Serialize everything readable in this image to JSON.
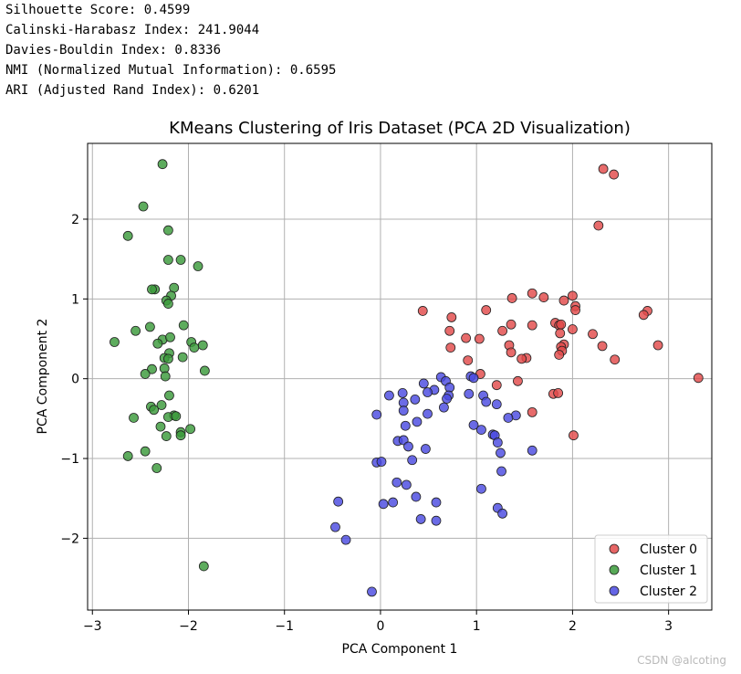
{
  "metrics": [
    "Silhouette Score: 0.4599",
    "Calinski-Harabasz Index: 241.9044",
    "Davies-Bouldin Index: 0.8336",
    "NMI (Normalized Mutual Information): 0.6595",
    "ARI (Adjusted Rand Index): 0.6201"
  ],
  "watermark": "CSDN @alcoting",
  "chart_data": {
    "type": "scatter",
    "title": "KMeans Clustering of Iris Dataset (PCA 2D Visualization)",
    "xlabel": "PCA Component 1",
    "ylabel": "PCA Component 2",
    "xlim": [
      -3.05,
      3.45
    ],
    "ylim": [
      -2.9,
      2.95
    ],
    "xticks": [
      -3,
      -2,
      -1,
      0,
      1,
      2,
      3
    ],
    "yticks": [
      -2,
      -1,
      0,
      1,
      2
    ],
    "xtick_labels": [
      "−3",
      "−2",
      "−1",
      "0",
      "1",
      "2",
      "3"
    ],
    "ytick_labels": [
      "−2",
      "−1",
      "0",
      "1",
      "2"
    ],
    "grid": true,
    "legend_position": "bottom-right",
    "series": [
      {
        "name": "Cluster 0",
        "color": "#e24a4a",
        "points": [
          [
            2.32,
            2.63
          ],
          [
            2.43,
            2.56
          ],
          [
            2.27,
            1.92
          ],
          [
            1.58,
            1.07
          ],
          [
            2.0,
            1.04
          ],
          [
            1.7,
            1.02
          ],
          [
            1.37,
            1.01
          ],
          [
            1.91,
            0.98
          ],
          [
            2.03,
            0.91
          ],
          [
            2.03,
            0.86
          ],
          [
            1.1,
            0.86
          ],
          [
            0.44,
            0.85
          ],
          [
            2.78,
            0.85
          ],
          [
            2.74,
            0.8
          ],
          [
            0.74,
            0.77
          ],
          [
            1.82,
            0.7
          ],
          [
            1.58,
            0.67
          ],
          [
            1.86,
            0.67
          ],
          [
            1.88,
            0.68
          ],
          [
            1.36,
            0.68
          ],
          [
            2.0,
            0.62
          ],
          [
            0.72,
            0.6
          ],
          [
            1.27,
            0.6
          ],
          [
            2.21,
            0.56
          ],
          [
            1.87,
            0.57
          ],
          [
            0.89,
            0.51
          ],
          [
            1.03,
            0.5
          ],
          [
            1.91,
            0.43
          ],
          [
            1.88,
            0.4
          ],
          [
            0.73,
            0.39
          ],
          [
            1.34,
            0.42
          ],
          [
            2.89,
            0.42
          ],
          [
            2.31,
            0.41
          ],
          [
            1.89,
            0.35
          ],
          [
            1.36,
            0.33
          ],
          [
            1.86,
            0.3
          ],
          [
            1.52,
            0.26
          ],
          [
            1.47,
            0.25
          ],
          [
            2.44,
            0.24
          ],
          [
            0.91,
            0.23
          ],
          [
            3.31,
            0.01
          ],
          [
            1.04,
            0.06
          ],
          [
            1.43,
            -0.03
          ],
          [
            1.21,
            -0.08
          ],
          [
            1.8,
            -0.19
          ],
          [
            1.85,
            -0.18
          ],
          [
            1.58,
            -0.42
          ],
          [
            2.01,
            -0.71
          ]
        ]
      },
      {
        "name": "Cluster 1",
        "color": "#3a9a3a",
        "points": [
          [
            -2.27,
            2.69
          ],
          [
            -2.47,
            2.16
          ],
          [
            -2.21,
            1.86
          ],
          [
            -2.63,
            1.79
          ],
          [
            -2.21,
            1.49
          ],
          [
            -2.08,
            1.49
          ],
          [
            -1.9,
            1.41
          ],
          [
            -2.35,
            1.12
          ],
          [
            -2.38,
            1.12
          ],
          [
            -2.15,
            1.14
          ],
          [
            -2.18,
            1.04
          ],
          [
            -2.23,
            0.98
          ],
          [
            -2.21,
            0.94
          ],
          [
            -2.55,
            0.6
          ],
          [
            -2.4,
            0.65
          ],
          [
            -2.05,
            0.67
          ],
          [
            -2.77,
            0.46
          ],
          [
            -1.97,
            0.46
          ],
          [
            -2.27,
            0.49
          ],
          [
            -2.19,
            0.52
          ],
          [
            -2.32,
            0.44
          ],
          [
            -1.94,
            0.39
          ],
          [
            -1.85,
            0.42
          ],
          [
            -2.2,
            0.32
          ],
          [
            -2.25,
            0.26
          ],
          [
            -2.06,
            0.27
          ],
          [
            -2.21,
            0.25
          ],
          [
            -2.38,
            0.12
          ],
          [
            -2.25,
            0.13
          ],
          [
            -2.45,
            0.06
          ],
          [
            -1.83,
            0.1
          ],
          [
            -2.24,
            0.03
          ],
          [
            -2.2,
            -0.21
          ],
          [
            -2.28,
            -0.33
          ],
          [
            -2.39,
            -0.35
          ],
          [
            -2.36,
            -0.39
          ],
          [
            -2.15,
            -0.46
          ],
          [
            -2.21,
            -0.48
          ],
          [
            -2.13,
            -0.47
          ],
          [
            -2.57,
            -0.49
          ],
          [
            -2.29,
            -0.6
          ],
          [
            -1.98,
            -0.63
          ],
          [
            -2.08,
            -0.67
          ],
          [
            -2.08,
            -0.71
          ],
          [
            -2.23,
            -0.72
          ],
          [
            -2.45,
            -0.91
          ],
          [
            -2.63,
            -0.97
          ],
          [
            -2.33,
            -1.12
          ],
          [
            -1.84,
            -2.35
          ]
        ]
      },
      {
        "name": "Cluster 2",
        "color": "#4a4ae0",
        "points": [
          [
            0.63,
            0.02
          ],
          [
            0.94,
            0.03
          ],
          [
            0.97,
            0.01
          ],
          [
            0.68,
            -0.03
          ],
          [
            0.45,
            -0.06
          ],
          [
            0.72,
            -0.11
          ],
          [
            0.56,
            -0.14
          ],
          [
            0.92,
            -0.19
          ],
          [
            0.49,
            -0.17
          ],
          [
            0.71,
            -0.21
          ],
          [
            0.09,
            -0.21
          ],
          [
            0.23,
            -0.18
          ],
          [
            0.69,
            -0.25
          ],
          [
            0.36,
            -0.26
          ],
          [
            1.07,
            -0.21
          ],
          [
            0.24,
            -0.3
          ],
          [
            1.1,
            -0.29
          ],
          [
            1.21,
            -0.32
          ],
          [
            0.66,
            -0.36
          ],
          [
            0.24,
            -0.4
          ],
          [
            0.49,
            -0.44
          ],
          [
            -0.04,
            -0.45
          ],
          [
            1.41,
            -0.46
          ],
          [
            1.33,
            -0.49
          ],
          [
            0.38,
            -0.54
          ],
          [
            0.97,
            -0.58
          ],
          [
            0.26,
            -0.59
          ],
          [
            1.05,
            -0.64
          ],
          [
            1.17,
            -0.7
          ],
          [
            1.19,
            -0.71
          ],
          [
            0.18,
            -0.78
          ],
          [
            0.24,
            -0.77
          ],
          [
            1.22,
            -0.8
          ],
          [
            0.29,
            -0.85
          ],
          [
            0.47,
            -0.88
          ],
          [
            1.58,
            -0.9
          ],
          [
            1.25,
            -0.93
          ],
          [
            0.33,
            -1.02
          ],
          [
            -0.04,
            -1.05
          ],
          [
            0.01,
            -1.04
          ],
          [
            1.26,
            -1.16
          ],
          [
            0.17,
            -1.3
          ],
          [
            0.27,
            -1.33
          ],
          [
            1.05,
            -1.38
          ],
          [
            0.37,
            -1.48
          ],
          [
            0.13,
            -1.55
          ],
          [
            0.03,
            -1.57
          ],
          [
            0.58,
            -1.55
          ],
          [
            -0.44,
            -1.54
          ],
          [
            1.22,
            -1.62
          ],
          [
            1.27,
            -1.69
          ],
          [
            0.42,
            -1.76
          ],
          [
            0.58,
            -1.78
          ],
          [
            -0.47,
            -1.86
          ],
          [
            -0.36,
            -2.02
          ],
          [
            -0.09,
            -2.67
          ]
        ]
      }
    ]
  }
}
